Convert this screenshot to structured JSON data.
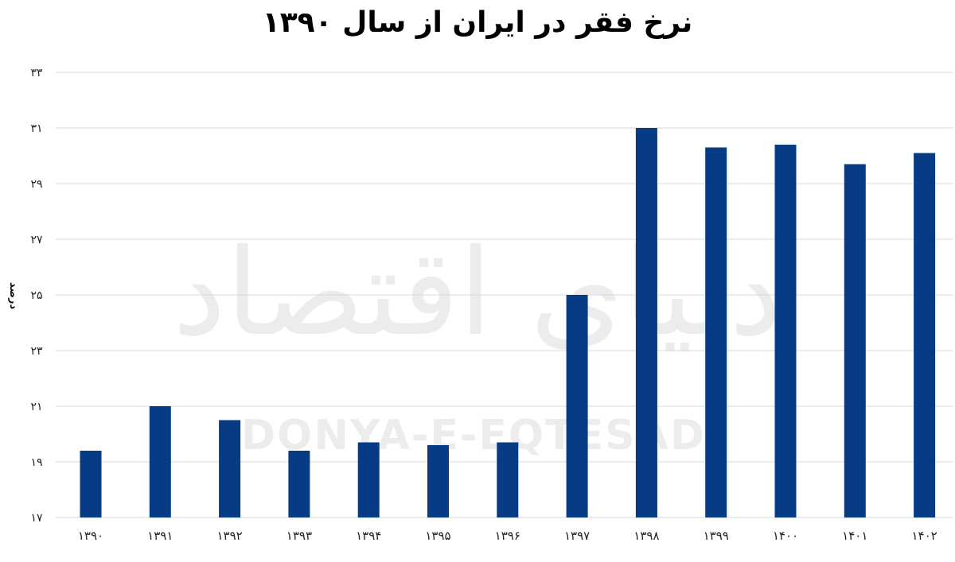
{
  "chart_data": {
    "type": "bar",
    "title": "نرخ فقر در ایران از سال ۱۳۹۰",
    "ylabel": "درصد",
    "xlabel": "",
    "categories": [
      "۱۳۹۰",
      "۱۳۹۱",
      "۱۳۹۲",
      "۱۳۹۳",
      "۱۳۹۴",
      "۱۳۹۵",
      "۱۳۹۶",
      "۱۳۹۷",
      "۱۳۹۸",
      "۱۳۹۹",
      "۱۴۰۰",
      "۱۴۰۱",
      "۱۴۰۲"
    ],
    "values": [
      19.4,
      21.0,
      20.5,
      19.4,
      19.7,
      19.6,
      19.7,
      25.0,
      31.0,
      30.3,
      30.4,
      29.7,
      30.1
    ],
    "ylim": [
      17,
      33
    ],
    "yticks": [
      17,
      19,
      21,
      23,
      25,
      27,
      29,
      31,
      33
    ],
    "ytick_labels": [
      "۱۷",
      "۱۹",
      "۲۱",
      "۲۳",
      "۲۵",
      "۲۷",
      "۲۹",
      "۳۱",
      "۳۳"
    ],
    "grid": true,
    "legend": "none",
    "bar_color": "#073b84",
    "gridline_color": "#d9d9d9"
  },
  "watermark": {
    "persian": "دنیای اقتصاد",
    "latin": "DONYA-E-EQTESAD"
  }
}
